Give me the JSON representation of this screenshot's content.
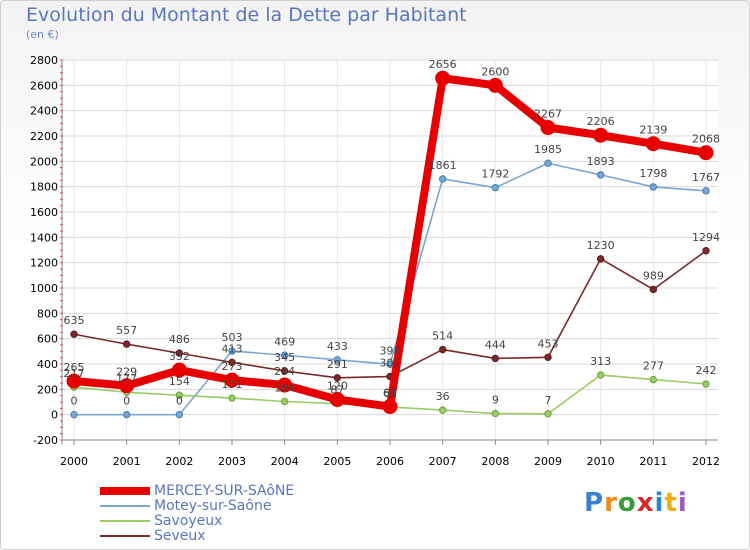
{
  "header": {
    "title": "Evolution du Montant de la Dette par Habitant",
    "subtitle": "(en €)"
  },
  "logo": {
    "text": "Proxiti"
  },
  "chart_data": {
    "type": "line",
    "title": "Evolution du Montant de la Dette par Habitant",
    "ylabel": "(en €)",
    "xlabel": "",
    "x": [
      "2000",
      "2001",
      "2002",
      "2003",
      "2004",
      "2005",
      "2006",
      "2007",
      "2008",
      "2009",
      "2010",
      "2011",
      "2012"
    ],
    "ylim": [
      -200,
      2800
    ],
    "yticks": [
      -200,
      0,
      200,
      400,
      600,
      800,
      1000,
      1200,
      1400,
      1600,
      1800,
      2000,
      2200,
      2400,
      2600,
      2800
    ],
    "grid": true,
    "legend_position": "bottom-left",
    "series": [
      {
        "name": "MERCEY-SUR-SAôNE",
        "color": "#e60000",
        "values": [
          265,
          229,
          352,
          273,
          234,
          120,
          64,
          2656,
          2600,
          2267,
          2206,
          2139,
          2068
        ]
      },
      {
        "name": "Motey-sur-Saône",
        "color": "#7aa6d0",
        "values": [
          0,
          0,
          0,
          503,
          469,
          433,
          398,
          1861,
          1792,
          1985,
          1893,
          1798,
          1767
        ]
      },
      {
        "name": "Savoyeux",
        "color": "#99cc66",
        "values": [
          217,
          177,
          154,
          131,
          104,
          87,
          61,
          36,
          9,
          7,
          313,
          277,
          242
        ]
      },
      {
        "name": "Seveux",
        "color": "#7a2a2a",
        "values": [
          635,
          557,
          486,
          413,
          345,
          291,
          301,
          514,
          444,
          453,
          1230,
          989,
          1294
        ]
      }
    ]
  }
}
